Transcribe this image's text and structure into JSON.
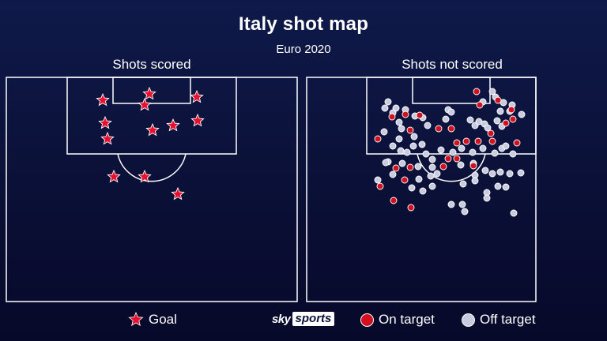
{
  "title": "Italy shot map",
  "subtitle": "Euro 2020",
  "colors": {
    "goal": "#e8102e",
    "on_target": "#d3101f",
    "off_target": "#c9cbe0",
    "background": "#0c133f",
    "lines": "#ffffff"
  },
  "branding": {
    "sky": "sky",
    "sports": "sports"
  },
  "legend": {
    "goal": "Goal",
    "on_target": "On target",
    "off_target": "Off target"
  },
  "chart_data": [
    {
      "type": "scatter",
      "panel_title": "Shots scored",
      "series": [
        {
          "name": "Goal",
          "marker": "star",
          "points": [
            [
              123,
              30
            ],
            [
              182,
              22
            ],
            [
              242,
              26
            ],
            [
              176,
              36
            ],
            [
              126,
              59
            ],
            [
              186,
              68
            ],
            [
              212,
              62
            ],
            [
              243,
              56
            ],
            [
              129,
              79
            ],
            [
              137,
              127
            ],
            [
              176,
              127
            ],
            [
              218,
              149
            ]
          ]
        }
      ]
    },
    {
      "type": "scatter",
      "panel_title": "Shots not scored",
      "series": [
        {
          "name": "On target",
          "marker": "circle",
          "points": [
            [
              216,
              19
            ],
            [
              243,
              30
            ],
            [
              220,
              36
            ],
            [
              260,
              42
            ],
            [
              109,
              51
            ],
            [
              126,
              48
            ],
            [
              144,
              49
            ],
            [
              132,
              68
            ],
            [
              168,
              66
            ],
            [
              184,
              66
            ],
            [
              234,
              72
            ],
            [
              253,
              59
            ],
            [
              262,
              54
            ],
            [
              91,
              79
            ],
            [
              191,
              84
            ],
            [
              203,
              82
            ],
            [
              218,
              82
            ],
            [
              236,
              82
            ],
            [
              267,
              84
            ],
            [
              180,
              104
            ],
            [
              191,
              104
            ],
            [
              174,
              114
            ],
            [
              212,
              113
            ],
            [
              114,
              116
            ],
            [
              132,
              115
            ],
            [
              125,
              131
            ],
            [
              94,
              139
            ],
            [
              111,
              157
            ],
            [
              133,
              166
            ]
          ]
        },
        {
          "name": "Off target",
          "marker": "circle",
          "points": [
            [
              236,
              19
            ],
            [
              240,
              26
            ],
            [
              224,
              32
            ],
            [
              250,
              33
            ],
            [
              261,
              36
            ],
            [
              246,
              44
            ],
            [
              104,
              32
            ],
            [
              114,
              40
            ],
            [
              126,
              42
            ],
            [
              110,
              46
            ],
            [
              100,
              40
            ],
            [
              138,
              50
            ],
            [
              148,
              52
            ],
            [
              154,
              62
            ],
            [
              180,
              42
            ],
            [
              177,
              54
            ],
            [
              184,
              45
            ],
            [
              208,
              55
            ],
            [
              214,
              62
            ],
            [
              219,
              57
            ],
            [
              226,
              60
            ],
            [
              230,
              65
            ],
            [
              242,
              56
            ],
            [
              248,
              63
            ],
            [
              258,
              44
            ],
            [
              273,
              48
            ],
            [
              118,
              58
            ],
            [
              121,
              66
            ],
            [
              137,
              76
            ],
            [
              118,
              79
            ],
            [
              136,
              88
            ],
            [
              110,
              88
            ],
            [
              99,
              70
            ],
            [
              120,
              94
            ],
            [
              128,
              96
            ],
            [
              147,
              86
            ],
            [
              152,
              98
            ],
            [
              160,
              105
            ],
            [
              171,
              93
            ],
            [
              186,
              96
            ],
            [
              197,
              91
            ],
            [
              211,
              96
            ],
            [
              224,
              91
            ],
            [
              239,
              97
            ],
            [
              248,
              91
            ],
            [
              253,
              88
            ],
            [
              262,
              98
            ],
            [
              104,
              108
            ],
            [
              122,
              110
            ],
            [
              142,
              114
            ],
            [
              160,
              115
            ],
            [
              166,
              123
            ],
            [
              196,
              112
            ],
            [
              212,
              110
            ],
            [
              214,
              125
            ],
            [
              227,
              119
            ],
            [
              236,
              123
            ],
            [
              246,
              121
            ],
            [
              258,
              123
            ],
            [
              272,
              122
            ],
            [
              91,
              131
            ],
            [
              110,
              124
            ],
            [
              143,
              130
            ],
            [
              158,
              126
            ],
            [
              160,
              139
            ],
            [
              134,
              141
            ],
            [
              148,
              145
            ],
            [
              199,
              136
            ],
            [
              214,
              132
            ],
            [
              229,
              147
            ],
            [
              243,
              139
            ],
            [
              253,
              140
            ],
            [
              229,
              154
            ],
            [
              184,
              162
            ],
            [
              198,
              162
            ],
            [
              201,
              171
            ],
            [
              263,
              173
            ],
            [
              101,
              109
            ]
          ]
        }
      ]
    }
  ]
}
